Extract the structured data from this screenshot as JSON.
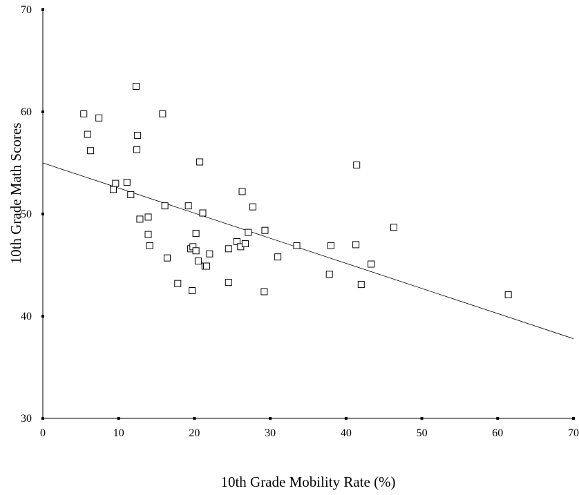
{
  "chart_data": {
    "type": "scatter",
    "title": "",
    "xlabel": "10th Grade Mobility Rate (%)",
    "ylabel": "10th Grade Math Scores",
    "xlim": [
      0,
      70
    ],
    "ylim": [
      30,
      70
    ],
    "x_ticks": [
      0,
      10,
      20,
      30,
      40,
      50,
      60,
      70
    ],
    "y_ticks": [
      30,
      40,
      50,
      60,
      70
    ],
    "grid": false,
    "legend": "none",
    "marker": "hollow-square",
    "colors": {
      "marker_stroke": "#000000",
      "axis": "#000000",
      "trendline": "#000000"
    },
    "series": [
      {
        "x": [
          5.4,
          5.9,
          6.3,
          7.4,
          9.3,
          9.6,
          11.1,
          11.6,
          12.3,
          12.4,
          12.5,
          12.8,
          13.9,
          13.9,
          14.1,
          15.8,
          16.1,
          16.4,
          17.8,
          19.2,
          19.5,
          19.7,
          19.8,
          20.2,
          20.2,
          20.5,
          20.7,
          21.1,
          21.4,
          21.6,
          22.0,
          24.5,
          24.5,
          25.6,
          26.1,
          26.3,
          26.7,
          27.1,
          27.7,
          29.3,
          29.2,
          31.0,
          33.5,
          37.8,
          38.0,
          41.3,
          41.4,
          42.0,
          43.3,
          46.3,
          61.4
        ],
        "y": [
          59.8,
          57.8,
          56.2,
          59.4,
          52.4,
          53.0,
          53.1,
          51.9,
          62.5,
          56.3,
          57.7,
          49.5,
          48.0,
          49.7,
          46.9,
          59.8,
          50.8,
          45.7,
          43.2,
          50.8,
          46.6,
          42.5,
          46.8,
          48.1,
          46.4,
          45.4,
          55.1,
          50.1,
          44.9,
          44.9,
          46.1,
          43.3,
          46.6,
          47.3,
          46.8,
          52.2,
          47.1,
          48.2,
          50.7,
          48.4,
          42.4,
          45.8,
          46.9,
          44.1,
          46.9,
          47.0,
          54.8,
          43.1,
          45.1,
          48.7,
          42.1
        ]
      }
    ],
    "trendline": {
      "x": [
        0,
        70
      ],
      "y": [
        55.0,
        37.8
      ]
    }
  }
}
